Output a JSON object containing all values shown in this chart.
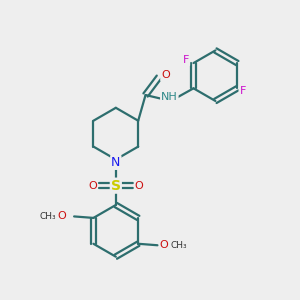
{
  "background_color": "#eeeeee",
  "bond_color": "#2d6e6e",
  "bond_width": 1.6,
  "figsize": [
    3.0,
    3.0
  ],
  "dpi": 100,
  "atom_colors": {
    "N": "#1a1aee",
    "NH": "#2d8888",
    "O": "#cc1111",
    "S": "#cccc00",
    "F": "#cc11cc"
  },
  "methoxy_color": "#cc1111"
}
